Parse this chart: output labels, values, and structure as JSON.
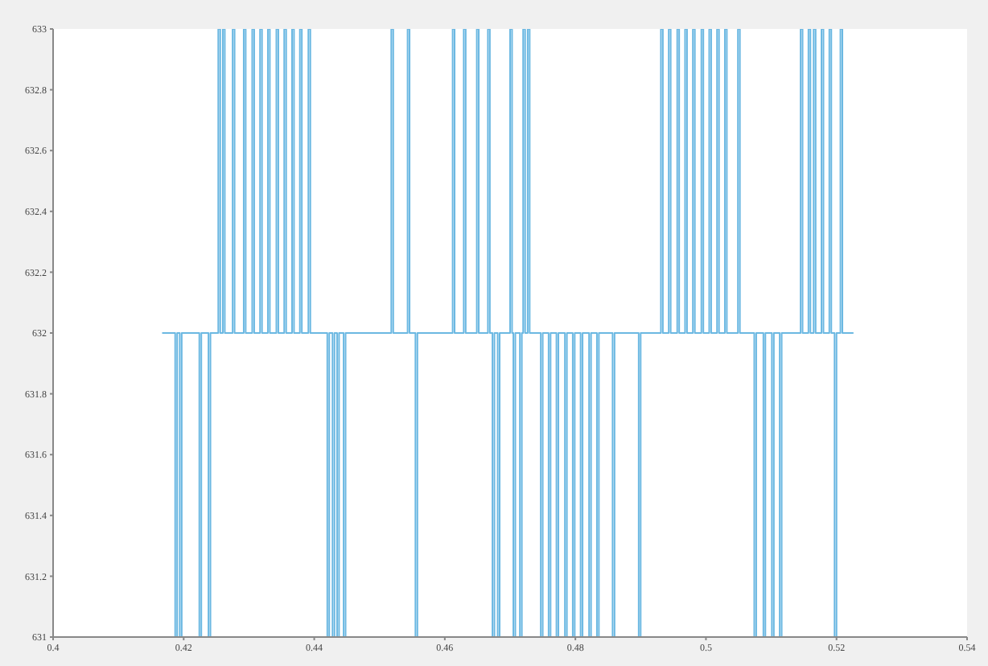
{
  "chart_data": {
    "type": "step",
    "color": "#6bb8e2",
    "x": [
      0.4167,
      0.4187,
      0.419,
      0.4194,
      0.4197,
      0.4224,
      0.4227,
      0.4238,
      0.4241,
      0.4253,
      0.4256,
      0.426,
      0.4263,
      0.4275,
      0.4278,
      0.4292,
      0.4295,
      0.4305,
      0.4308,
      0.4317,
      0.432,
      0.4329,
      0.4332,
      0.4342,
      0.4345,
      0.4354,
      0.4357,
      0.4366,
      0.4369,
      0.4378,
      0.4381,
      0.4391,
      0.4394,
      0.442,
      0.4423,
      0.4428,
      0.4431,
      0.4435,
      0.4438,
      0.4445,
      0.4448,
      0.4518,
      0.4521,
      0.4543,
      0.4546,
      0.4555,
      0.4558,
      0.4612,
      0.4615,
      0.4629,
      0.4632,
      0.4649,
      0.4652,
      0.4666,
      0.4669,
      0.4673,
      0.4676,
      0.4681,
      0.4684,
      0.47,
      0.4703,
      0.4705,
      0.4708,
      0.4715,
      0.4718,
      0.472,
      0.4723,
      0.4727,
      0.473,
      0.4747,
      0.475,
      0.4759,
      0.4762,
      0.4771,
      0.4774,
      0.4784,
      0.4787,
      0.4796,
      0.4799,
      0.4808,
      0.4811,
      0.4821,
      0.4824,
      0.4833,
      0.4836,
      0.4857,
      0.486,
      0.4897,
      0.49,
      0.4931,
      0.4934,
      0.4943,
      0.4946,
      0.4956,
      0.4959,
      0.4968,
      0.4971,
      0.498,
      0.4983,
      0.4993,
      0.4996,
      0.5005,
      0.5008,
      0.5017,
      0.502,
      0.5029,
      0.5032,
      0.5049,
      0.5052,
      0.5074,
      0.5077,
      0.5088,
      0.5091,
      0.5101,
      0.5104,
      0.5113,
      0.5116,
      0.5145,
      0.5148,
      0.5157,
      0.516,
      0.5165,
      0.5168,
      0.5177,
      0.518,
      0.5189,
      0.5192,
      0.5197,
      0.52,
      0.5206,
      0.5209,
      0.5226
    ],
    "values": [
      632,
      631,
      632,
      631,
      632,
      631,
      632,
      631,
      632,
      633,
      632,
      633,
      632,
      633,
      632,
      633,
      632,
      633,
      632,
      633,
      632,
      633,
      632,
      633,
      632,
      633,
      632,
      633,
      632,
      633,
      632,
      633,
      632,
      631,
      632,
      631,
      632,
      631,
      632,
      631,
      632,
      633,
      632,
      633,
      632,
      631,
      632,
      633,
      632,
      633,
      632,
      633,
      632,
      633,
      632,
      631,
      632,
      631,
      632,
      633,
      632,
      631,
      632,
      631,
      632,
      633,
      632,
      633,
      632,
      631,
      632,
      631,
      632,
      631,
      632,
      631,
      632,
      631,
      632,
      631,
      632,
      631,
      632,
      631,
      632,
      631,
      632,
      631,
      632,
      633,
      632,
      633,
      632,
      633,
      632,
      633,
      632,
      633,
      632,
      633,
      632,
      633,
      632,
      633,
      632,
      633,
      632,
      633,
      632,
      631,
      632,
      631,
      632,
      631,
      632,
      631,
      632,
      633,
      632,
      633,
      632,
      633,
      632,
      633,
      632,
      633,
      632,
      631,
      632,
      633,
      632,
      632
    ],
    "xlim": [
      0.4,
      0.54
    ],
    "xticks": [
      0.4,
      0.42,
      0.44,
      0.46,
      0.48,
      0.5,
      0.52,
      0.54
    ],
    "ylim": [
      631,
      633
    ],
    "yticks": [
      631,
      631.2,
      631.4,
      631.6,
      631.8,
      632,
      632.2,
      632.4,
      632.6,
      632.8,
      633
    ],
    "grid": false
  }
}
